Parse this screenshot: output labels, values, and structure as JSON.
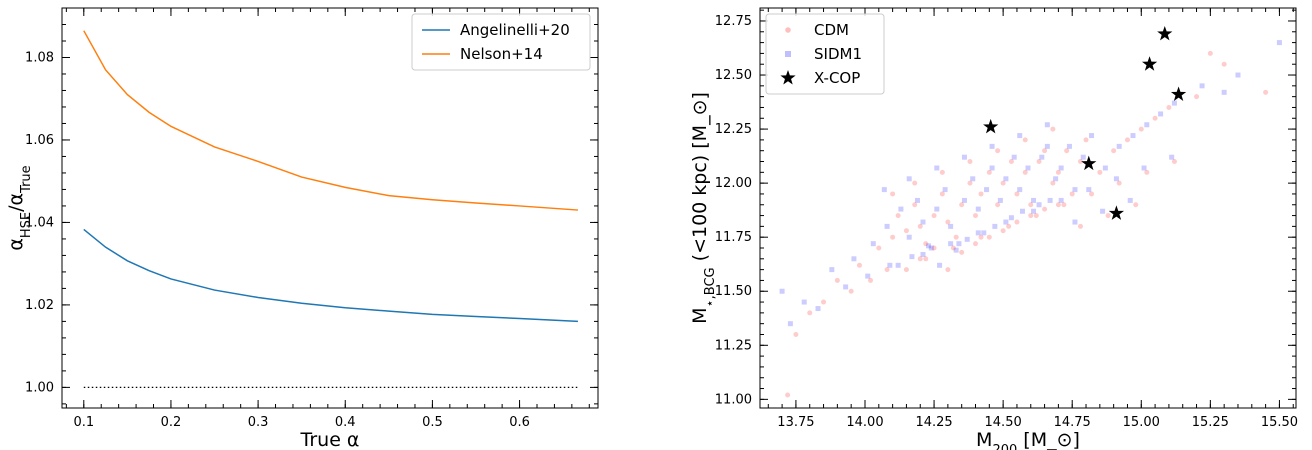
{
  "chart_data": [
    {
      "type": "line",
      "xlabel": "True α",
      "ylabel": "α_HSE/α_True",
      "xlim": [
        0.075,
        0.69
      ],
      "ylim": [
        0.995,
        1.092
      ],
      "x_ticks": [
        {
          "value": 0.1,
          "label": "0.1"
        },
        {
          "value": 0.2,
          "label": "0.2"
        },
        {
          "value": 0.3,
          "label": "0.3"
        },
        {
          "value": 0.4,
          "label": "0.4"
        },
        {
          "value": 0.5,
          "label": "0.5"
        },
        {
          "value": 0.6,
          "label": "0.6"
        }
      ],
      "y_ticks": [
        {
          "value": 1.0,
          "label": "1.00"
        },
        {
          "value": 1.02,
          "label": "1.02"
        },
        {
          "value": 1.04,
          "label": "1.04"
        },
        {
          "value": 1.06,
          "label": "1.06"
        },
        {
          "value": 1.08,
          "label": "1.08"
        }
      ],
      "legend_position": "top-right",
      "series": [
        {
          "name": "Angelinelli+20",
          "color": "#1f77b4",
          "x": [
            0.1,
            0.125,
            0.15,
            0.175,
            0.2,
            0.25,
            0.3,
            0.35,
            0.4,
            0.45,
            0.5,
            0.55,
            0.6,
            0.667
          ],
          "y": [
            1.0383,
            1.034,
            1.0307,
            1.0283,
            1.0263,
            1.0236,
            1.0218,
            1.0204,
            1.0193,
            1.0185,
            1.0177,
            1.0172,
            1.0167,
            1.016
          ]
        },
        {
          "name": "Nelson+14",
          "color": "#ff7f0e",
          "x": [
            0.1,
            0.125,
            0.15,
            0.175,
            0.2,
            0.25,
            0.3,
            0.35,
            0.4,
            0.45,
            0.5,
            0.55,
            0.6,
            0.667
          ],
          "y": [
            1.0865,
            1.077,
            1.071,
            1.0667,
            1.0633,
            1.0583,
            1.0548,
            1.051,
            1.0485,
            1.0465,
            1.0455,
            1.0447,
            1.044,
            1.043
          ]
        }
      ],
      "reference_line": {
        "y": 1.0,
        "style": "dotted",
        "color": "#000000",
        "x_range": [
          0.1,
          0.667
        ]
      }
    },
    {
      "type": "scatter",
      "xlabel": "M_200 [M_⊙]",
      "ylabel": "M_⋆,BCG (<100 kpc) [M_⊙]",
      "xlim": [
        13.62,
        15.56
      ],
      "ylim": [
        10.96,
        12.81
      ],
      "x_ticks": [
        {
          "value": 13.75,
          "label": "13.75"
        },
        {
          "value": 14.0,
          "label": "14.00"
        },
        {
          "value": 14.25,
          "label": "14.25"
        },
        {
          "value": 14.5,
          "label": "14.50"
        },
        {
          "value": 14.75,
          "label": "14.75"
        },
        {
          "value": 15.0,
          "label": "15.00"
        },
        {
          "value": 15.25,
          "label": "15.25"
        },
        {
          "value": 15.5,
          "label": "15.50"
        }
      ],
      "y_ticks": [
        {
          "value": 11.0,
          "label": "11.00"
        },
        {
          "value": 11.25,
          "label": "11.25"
        },
        {
          "value": 11.5,
          "label": "11.50"
        },
        {
          "value": 11.75,
          "label": "11.75"
        },
        {
          "value": 12.0,
          "label": "12.00"
        },
        {
          "value": 12.25,
          "label": "12.25"
        },
        {
          "value": 12.5,
          "label": "12.50"
        },
        {
          "value": 12.75,
          "label": "12.75"
        }
      ],
      "legend_position": "top-left",
      "series": [
        {
          "name": "CDM",
          "color": "#ff0000",
          "marker": "circle",
          "opacity": 0.2,
          "x": [
            13.72,
            13.8,
            13.9,
            13.98,
            14.05,
            14.1,
            14.12,
            14.15,
            14.18,
            14.2,
            14.22,
            14.25,
            14.28,
            14.3,
            14.33,
            14.35,
            14.38,
            14.4,
            14.42,
            14.45,
            14.48,
            14.5,
            14.53,
            14.55,
            14.58,
            14.6,
            14.63,
            14.65,
            14.68,
            14.7,
            14.73,
            14.75,
            14.78,
            14.8,
            14.85,
            14.9,
            14.95,
            15.0,
            15.05,
            15.1,
            15.2,
            15.3,
            15.45,
            14.15,
            14.2,
            14.25,
            14.3,
            14.35,
            14.4,
            14.45,
            14.5,
            14.55,
            14.6,
            14.65,
            14.7,
            14.1,
            14.18,
            14.28,
            14.38,
            14.48,
            14.58,
            14.68,
            14.78,
            14.88,
            14.98,
            13.75,
            13.85,
            13.95,
            14.02,
            14.08,
            14.22,
            14.32,
            14.42,
            14.52,
            14.62,
            14.72,
            14.82,
            14.92,
            15.02,
            15.12,
            15.25
          ],
          "y": [
            11.02,
            11.4,
            11.55,
            11.62,
            11.7,
            11.75,
            11.85,
            11.78,
            11.9,
            11.8,
            11.72,
            11.85,
            11.95,
            11.82,
            11.75,
            11.9,
            12.0,
            11.85,
            11.95,
            12.05,
            11.9,
            12.0,
            12.1,
            11.95,
            12.05,
            11.9,
            12.1,
            12.15,
            12.0,
            12.05,
            12.15,
            11.95,
            12.1,
            12.2,
            12.05,
            12.15,
            12.2,
            12.25,
            12.3,
            12.35,
            12.4,
            12.55,
            12.42,
            11.6,
            11.65,
            11.7,
            11.6,
            11.68,
            11.72,
            11.75,
            11.78,
            11.82,
            11.85,
            11.88,
            11.9,
            11.95,
            12.0,
            12.05,
            12.1,
            12.15,
            12.2,
            12.25,
            11.8,
            11.85,
            11.9,
            11.3,
            11.45,
            11.5,
            11.55,
            11.6,
            11.65,
            11.7,
            11.75,
            11.8,
            11.85,
            11.9,
            11.95,
            12.0,
            12.05,
            12.1,
            12.6
          ]
        },
        {
          "name": "SIDM1",
          "color": "#0000ff",
          "marker": "square",
          "opacity": 0.2,
          "x": [
            13.7,
            13.78,
            13.88,
            13.96,
            14.03,
            14.08,
            14.13,
            14.16,
            14.19,
            14.21,
            14.24,
            14.26,
            14.29,
            14.31,
            14.34,
            14.36,
            14.39,
            14.41,
            14.44,
            14.46,
            14.49,
            14.51,
            14.54,
            14.56,
            14.59,
            14.61,
            14.64,
            14.66,
            14.69,
            14.71,
            14.74,
            14.76,
            14.79,
            14.82,
            14.87,
            14.92,
            14.97,
            15.02,
            15.07,
            15.12,
            15.22,
            15.35,
            15.5,
            14.12,
            14.17,
            14.23,
            14.27,
            14.33,
            14.37,
            14.43,
            14.47,
            14.53,
            14.57,
            14.63,
            14.67,
            14.07,
            14.16,
            14.26,
            14.36,
            14.46,
            14.56,
            14.66,
            14.76,
            14.86,
            14.96,
            13.73,
            13.83,
            13.93,
            14.01,
            14.09,
            14.21,
            14.31,
            14.41,
            14.51,
            14.61,
            14.71,
            14.81,
            14.91,
            15.01,
            15.11,
            15.3
          ],
          "y": [
            11.5,
            11.45,
            11.6,
            11.65,
            11.72,
            11.8,
            11.88,
            11.75,
            11.92,
            11.82,
            11.7,
            11.88,
            11.97,
            11.8,
            11.72,
            11.92,
            12.02,
            11.88,
            11.97,
            12.07,
            11.92,
            12.02,
            12.12,
            11.97,
            12.07,
            11.92,
            12.12,
            12.17,
            12.02,
            12.07,
            12.17,
            11.97,
            12.12,
            12.22,
            12.07,
            12.17,
            12.22,
            12.27,
            12.32,
            12.37,
            12.45,
            12.5,
            12.65,
            11.62,
            11.66,
            11.71,
            11.62,
            11.69,
            11.74,
            11.77,
            11.8,
            11.84,
            11.87,
            11.9,
            11.92,
            11.97,
            12.02,
            12.07,
            12.12,
            12.17,
            12.22,
            12.27,
            11.82,
            11.87,
            11.92,
            11.35,
            11.42,
            11.52,
            11.57,
            11.62,
            11.67,
            11.72,
            11.77,
            11.82,
            11.87,
            11.92,
            11.97,
            12.02,
            12.07,
            12.12,
            12.42
          ]
        },
        {
          "name": "X-COP",
          "color": "#000000",
          "marker": "star",
          "opacity": 1,
          "x": [
            14.455,
            14.81,
            14.91,
            15.03,
            15.085,
            15.135
          ],
          "y": [
            12.26,
            12.09,
            11.86,
            12.55,
            12.69,
            12.41
          ]
        }
      ]
    }
  ]
}
